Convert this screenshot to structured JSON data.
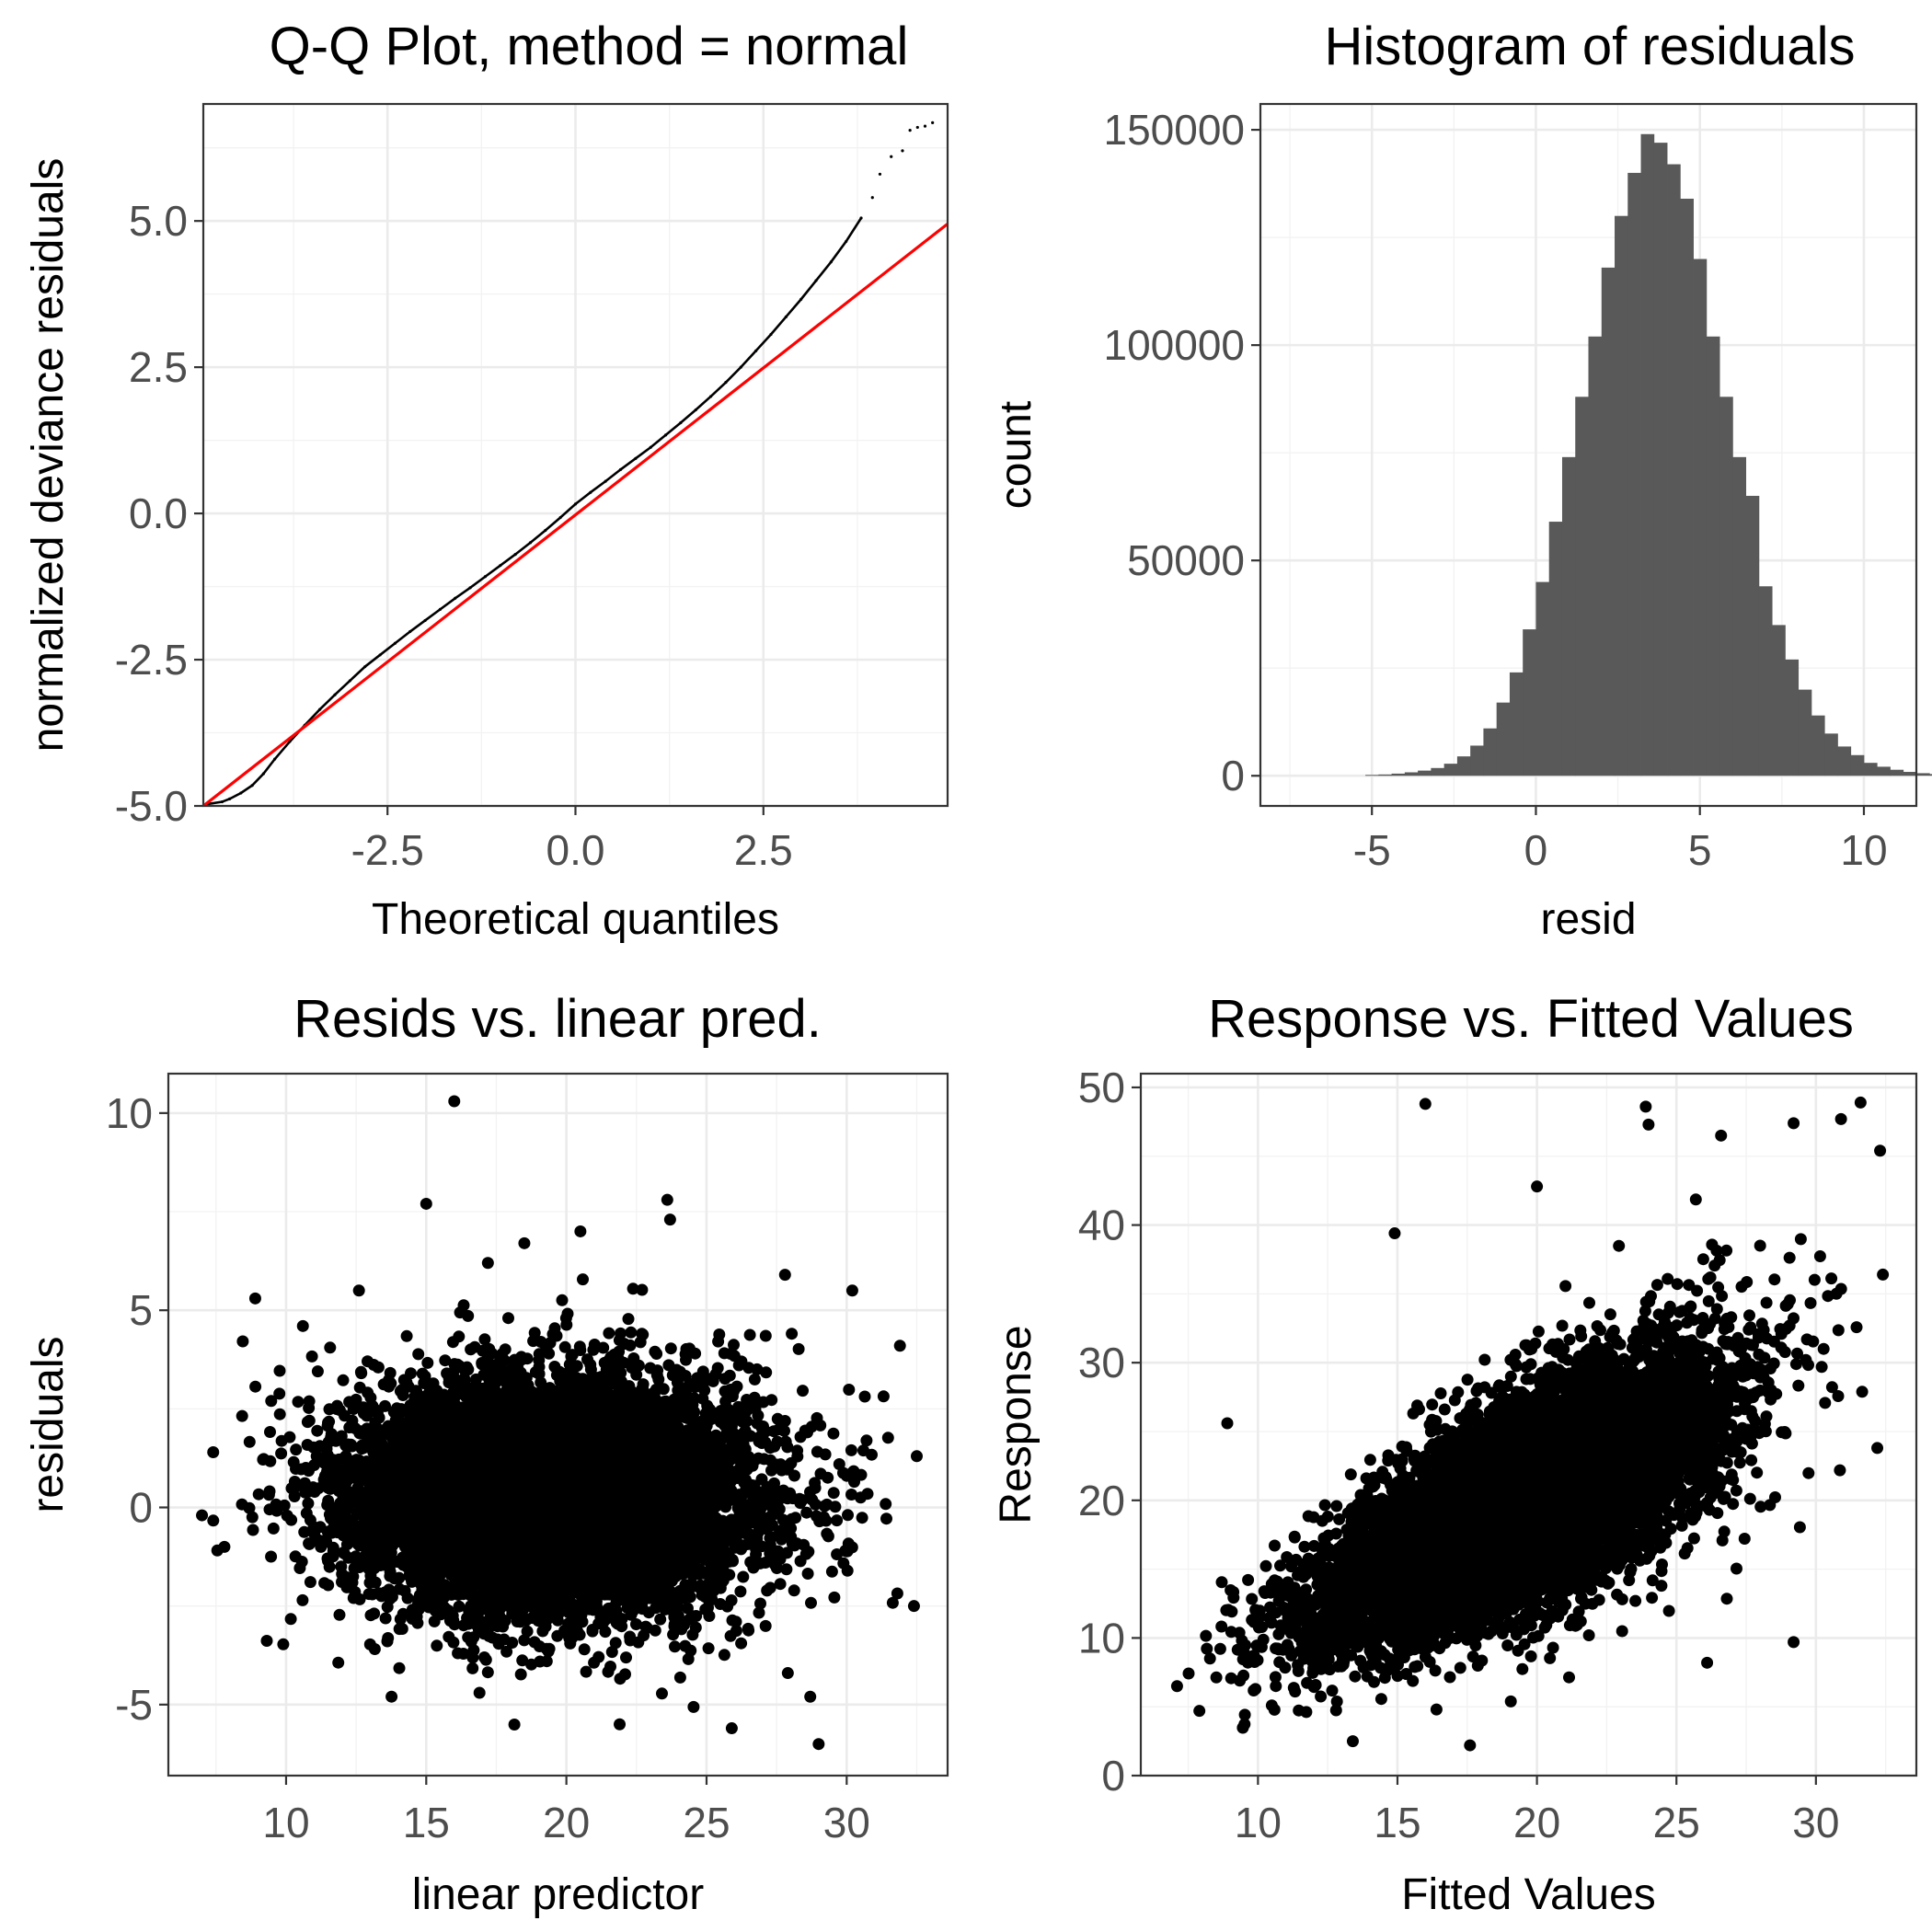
{
  "chart_data": [
    {
      "id": "qq",
      "type": "scatter",
      "title": "Q-Q Plot, method = normal",
      "xlabel": "Theoretical quantiles",
      "ylabel": "normalized deviance residuals",
      "xlim": [
        -4.95,
        4.95
      ],
      "ylim": [
        -5.0,
        7.0
      ],
      "x_ticks": [
        -2.5,
        0.0,
        2.5
      ],
      "x_tick_labels": [
        "-2.5",
        "0.0",
        "2.5"
      ],
      "y_ticks": [
        -5.0,
        -2.5,
        0.0,
        2.5,
        5.0
      ],
      "y_tick_labels": [
        "-5.0",
        "-2.5",
        "0.0",
        "2.5",
        "5.0"
      ],
      "grid": true,
      "series": [
        {
          "kind": "points",
          "color": "#000000",
          "points": [
            [
              -4.9,
              -4.97
            ],
            [
              -4.7,
              -4.93
            ],
            [
              -4.6,
              -4.88
            ],
            [
              -4.45,
              -4.78
            ],
            [
              -4.3,
              -4.65
            ],
            [
              -4.15,
              -4.45
            ],
            [
              -4.0,
              -4.2
            ],
            [
              -3.8,
              -3.9
            ],
            [
              -3.6,
              -3.62
            ],
            [
              -3.4,
              -3.35
            ],
            [
              -3.2,
              -3.1
            ],
            [
              -3.0,
              -2.86
            ],
            [
              -2.8,
              -2.62
            ],
            [
              -2.6,
              -2.42
            ],
            [
              -2.4,
              -2.22
            ],
            [
              -2.2,
              -2.02
            ],
            [
              -2.0,
              -1.83
            ],
            [
              -1.8,
              -1.64
            ],
            [
              -1.6,
              -1.45
            ],
            [
              -1.4,
              -1.27
            ],
            [
              -1.2,
              -1.08
            ],
            [
              -1.0,
              -0.89
            ],
            [
              -0.8,
              -0.7
            ],
            [
              -0.6,
              -0.5
            ],
            [
              -0.4,
              -0.29
            ],
            [
              -0.2,
              -0.07
            ],
            [
              0.0,
              0.16
            ],
            [
              0.2,
              0.36
            ],
            [
              0.4,
              0.55
            ],
            [
              0.6,
              0.75
            ],
            [
              0.8,
              0.94
            ],
            [
              1.0,
              1.13
            ],
            [
              1.2,
              1.34
            ],
            [
              1.4,
              1.55
            ],
            [
              1.6,
              1.77
            ],
            [
              1.8,
              2.0
            ],
            [
              2.0,
              2.24
            ],
            [
              2.2,
              2.5
            ],
            [
              2.4,
              2.78
            ],
            [
              2.6,
              3.06
            ],
            [
              2.8,
              3.36
            ],
            [
              3.0,
              3.66
            ],
            [
              3.2,
              3.98
            ],
            [
              3.4,
              4.3
            ],
            [
              3.6,
              4.65
            ],
            [
              3.8,
              5.05
            ],
            [
              3.95,
              5.4
            ],
            [
              4.05,
              5.8
            ],
            [
              4.2,
              6.1
            ],
            [
              4.35,
              6.2
            ],
            [
              4.45,
              6.55
            ],
            [
              4.55,
              6.6
            ],
            [
              4.65,
              6.62
            ],
            [
              4.75,
              6.68
            ]
          ]
        },
        {
          "kind": "line",
          "color": "#ff0000",
          "points": [
            [
              -4.95,
              -5.0
            ],
            [
              4.95,
              4.95
            ]
          ]
        }
      ]
    },
    {
      "id": "hist",
      "type": "bar",
      "title": "Histogram of residuals",
      "xlabel": "resid",
      "ylabel": "count",
      "xlim": [
        -8.4,
        11.6
      ],
      "ylim": [
        -7000,
        156000
      ],
      "x_ticks": [
        -5,
        0,
        5,
        10
      ],
      "x_tick_labels": [
        "-5",
        "0",
        "5",
        "10"
      ],
      "y_ticks": [
        0,
        50000,
        100000,
        150000
      ],
      "y_tick_labels": [
        "0",
        "50000",
        "100000",
        "150000"
      ],
      "grid": true,
      "color": "#595959",
      "bin_width": 0.4,
      "bin_start": -5.2,
      "values": [
        200,
        300,
        500,
        800,
        1200,
        1800,
        2800,
        4500,
        7000,
        11000,
        17000,
        24000,
        34000,
        45000,
        59000,
        74000,
        88000,
        102000,
        118000,
        130000,
        140000,
        149000,
        147000,
        142000,
        134000,
        120000,
        102000,
        88000,
        74000,
        65000,
        44000,
        35000,
        27000,
        20000,
        14000,
        9800,
        6800,
        4800,
        3000,
        2100,
        1400,
        900,
        600,
        400,
        250,
        150
      ]
    },
    {
      "id": "resid",
      "type": "scatter",
      "title": "Resids vs. linear pred.",
      "xlabel": "linear predictor",
      "ylabel": "residuals",
      "xlim": [
        5.8,
        33.6
      ],
      "ylim": [
        -6.8,
        11.0
      ],
      "x_ticks": [
        10,
        15,
        20,
        25,
        30
      ],
      "x_tick_labels": [
        "10",
        "15",
        "20",
        "25",
        "30"
      ],
      "y_ticks": [
        -5,
        0,
        5,
        10
      ],
      "y_tick_labels": [
        "-5",
        "0",
        "5",
        "10"
      ],
      "grid": true,
      "color": "#000000",
      "cloud": {
        "x_center": 19.5,
        "x_spread": 3.6,
        "x_min": 7.0,
        "x_max": 32.3,
        "y_center": 0.3,
        "y_spread": 1.45
      },
      "points": [
        [
          16.0,
          10.3
        ],
        [
          15.0,
          7.7
        ],
        [
          23.6,
          7.8
        ],
        [
          23.7,
          7.3
        ],
        [
          18.5,
          6.7
        ],
        [
          20.5,
          7.0
        ],
        [
          17.2,
          6.2
        ],
        [
          8.9,
          5.3
        ],
        [
          12.6,
          5.5
        ],
        [
          30.2,
          5.5
        ],
        [
          27.8,
          5.9
        ],
        [
          7.0,
          -0.2
        ],
        [
          7.8,
          -1.0
        ],
        [
          7.4,
          1.4
        ],
        [
          29.0,
          -6.0
        ],
        [
          25.9,
          -5.6
        ],
        [
          21.9,
          -5.5
        ],
        [
          16.9,
          -4.7
        ],
        [
          32.4,
          -2.5
        ],
        [
          32.5,
          1.3
        ],
        [
          28.7,
          -4.8
        ],
        [
          27.9,
          -4.2
        ],
        [
          19.3,
          -3.9
        ],
        [
          10.6,
          4.6
        ],
        [
          31.9,
          4.1
        ]
      ]
    },
    {
      "id": "resp",
      "type": "scatter",
      "title": "Response vs. Fitted Values",
      "xlabel": "Fitted Values",
      "ylabel": "Response",
      "xlim": [
        5.8,
        33.6
      ],
      "ylim": [
        0,
        51
      ],
      "x_ticks": [
        10,
        15,
        20,
        25,
        30
      ],
      "x_tick_labels": [
        "10",
        "15",
        "20",
        "25",
        "30"
      ],
      "y_ticks": [
        0,
        10,
        20,
        30,
        40,
        50
      ],
      "y_tick_labels": [
        "0",
        "10",
        "20",
        "30",
        "40",
        "50"
      ],
      "grid": true,
      "color": "#000000",
      "cloud": {
        "x_center": 19.5,
        "x_spread": 3.6,
        "x_min": 7.0,
        "x_max": 32.3,
        "resid_center": 0.3,
        "resid_spread": 3.1
      },
      "points": [
        [
          16.0,
          48.8
        ],
        [
          23.9,
          48.6
        ],
        [
          24.0,
          47.3
        ],
        [
          31.6,
          48.9
        ],
        [
          30.9,
          47.7
        ],
        [
          29.2,
          47.4
        ],
        [
          7.1,
          6.5
        ],
        [
          7.9,
          4.7
        ],
        [
          8.9,
          25.6
        ],
        [
          14.9,
          39.4
        ],
        [
          20.0,
          42.8
        ],
        [
          26.1,
          8.2
        ],
        [
          29.2,
          9.7
        ],
        [
          17.6,
          2.2
        ],
        [
          13.4,
          2.5
        ],
        [
          32.3,
          45.4
        ],
        [
          32.4,
          36.4
        ],
        [
          32.2,
          23.8
        ],
        [
          28.0,
          38.5
        ],
        [
          26.6,
          46.5
        ]
      ]
    }
  ]
}
